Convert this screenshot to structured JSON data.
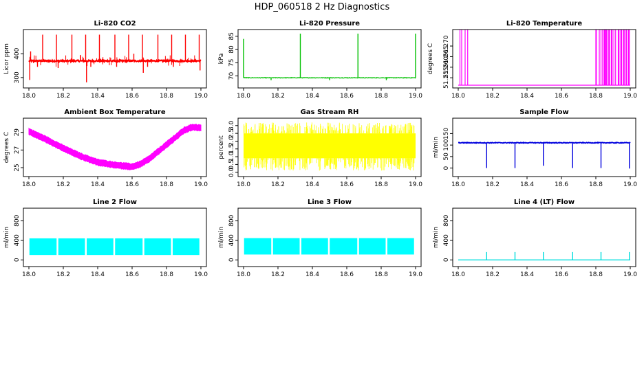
{
  "figure_title": "HDP_060518 2 Hz Diagnostics",
  "chart_data": [
    {
      "id": "co2",
      "type": "line",
      "title": "Li-820 CO2",
      "xlabel": "",
      "ylabel": "Licor ppm",
      "color": "#ff0000",
      "xlim": [
        18.0,
        19.0
      ],
      "ylim": [
        268,
        490
      ],
      "x_ticks": [
        "18.0",
        "18.2",
        "18.4",
        "18.6",
        "18.8",
        "19.0"
      ],
      "y_ticks": [
        {
          "value": 300,
          "label": "300"
        },
        {
          "value": 400,
          "label": "400"
        }
      ],
      "baseline": 370,
      "noise": 6,
      "spikes": [
        {
          "x": 18.005,
          "y": 290
        },
        {
          "x": 18.01,
          "y": 410
        },
        {
          "x": 18.05,
          "y": 345
        },
        {
          "x": 18.08,
          "y": 480
        },
        {
          "x": 18.16,
          "y": 480
        },
        {
          "x": 18.17,
          "y": 340
        },
        {
          "x": 18.25,
          "y": 480
        },
        {
          "x": 18.3,
          "y": 395
        },
        {
          "x": 18.33,
          "y": 480
        },
        {
          "x": 18.335,
          "y": 280
        },
        {
          "x": 18.36,
          "y": 345
        },
        {
          "x": 18.41,
          "y": 480
        },
        {
          "x": 18.5,
          "y": 480
        },
        {
          "x": 18.51,
          "y": 345
        },
        {
          "x": 18.58,
          "y": 480
        },
        {
          "x": 18.61,
          "y": 400
        },
        {
          "x": 18.66,
          "y": 480
        },
        {
          "x": 18.665,
          "y": 320
        },
        {
          "x": 18.69,
          "y": 345
        },
        {
          "x": 18.75,
          "y": 480
        },
        {
          "x": 18.83,
          "y": 480
        },
        {
          "x": 18.84,
          "y": 345
        },
        {
          "x": 18.91,
          "y": 480
        },
        {
          "x": 18.99,
          "y": 480
        },
        {
          "x": 18.995,
          "y": 330
        }
      ]
    },
    {
      "id": "pressure",
      "type": "line",
      "title": "Li-820 Pressure",
      "xlabel": "",
      "ylabel": "kPa",
      "color": "#00c000",
      "xlim": [
        18.0,
        19.0
      ],
      "ylim": [
        66.5,
        86.5
      ],
      "x_ticks": [
        "18.0",
        "18.2",
        "18.4",
        "18.6",
        "18.8",
        "19.0"
      ],
      "y_ticks": [
        {
          "value": 70,
          "label": "70"
        },
        {
          "value": 75,
          "label": "75"
        },
        {
          "value": 80,
          "label": "80"
        },
        {
          "value": 85,
          "label": "85"
        }
      ],
      "baseline": 69.3,
      "noise": 0.2,
      "spikes": [
        {
          "x": 18.0,
          "y": 84
        },
        {
          "x": 18.33,
          "y": 86
        },
        {
          "x": 18.665,
          "y": 86
        },
        {
          "x": 19.0,
          "y": 86
        },
        {
          "x": 18.16,
          "y": 68.4
        },
        {
          "x": 18.5,
          "y": 68.4
        },
        {
          "x": 18.83,
          "y": 68.4
        }
      ]
    },
    {
      "id": "licor_temp",
      "type": "line",
      "title": "Li-820 Temperature",
      "xlabel": "",
      "ylabel": "degrees C",
      "color": "#ff00ff",
      "xlim": [
        18.0,
        19.0
      ],
      "ylim": [
        51.2515,
        51.2765
      ],
      "x_ticks": [
        "18.0",
        "18.2",
        "18.4",
        "18.6",
        "18.8",
        "19.0"
      ],
      "y_ticks": [
        {
          "value": 51.255,
          "label": "51.255"
        },
        {
          "value": 51.26,
          "label": "51.260"
        },
        {
          "value": 51.265,
          "label": "51.265"
        },
        {
          "value": 51.27,
          "label": "51.270"
        }
      ],
      "baseline": 51.2515,
      "high": 51.2765,
      "square_pulses": [
        [
          18.01,
          18.02
        ],
        [
          18.04,
          18.055
        ],
        [
          18.8,
          18.803
        ],
        [
          18.82,
          18.83
        ],
        [
          18.84,
          18.842
        ],
        [
          18.85,
          18.855
        ],
        [
          18.86,
          18.865
        ],
        [
          18.875,
          18.88
        ],
        [
          18.89,
          18.895
        ],
        [
          18.905,
          18.915
        ],
        [
          18.93,
          18.935
        ],
        [
          18.945,
          18.95
        ],
        [
          18.96,
          18.965
        ],
        [
          18.975,
          18.98
        ],
        [
          18.99,
          18.995
        ]
      ]
    },
    {
      "id": "box_temp",
      "type": "area",
      "title": "Ambient Box Temperature",
      "xlabel": "",
      "ylabel": "degrees C",
      "color": "#ff00ff",
      "xlim": [
        18.0,
        19.0
      ],
      "ylim": [
        24.3,
        30.3
      ],
      "x_ticks": [
        "18.0",
        "18.2",
        "18.4",
        "18.6",
        "18.8",
        "19.0"
      ],
      "y_ticks": [
        {
          "value": 25,
          "label": "25"
        },
        {
          "value": 27,
          "label": "27"
        },
        {
          "value": 29,
          "label": "29"
        }
      ],
      "curve": [
        {
          "x": 18.0,
          "y": 29.1
        },
        {
          "x": 18.1,
          "y": 28.2
        },
        {
          "x": 18.2,
          "y": 27.2
        },
        {
          "x": 18.3,
          "y": 26.3
        },
        {
          "x": 18.4,
          "y": 25.6
        },
        {
          "x": 18.5,
          "y": 25.3
        },
        {
          "x": 18.6,
          "y": 25.1
        },
        {
          "x": 18.65,
          "y": 25.4
        },
        {
          "x": 18.7,
          "y": 26.0
        },
        {
          "x": 18.8,
          "y": 27.6
        },
        {
          "x": 18.9,
          "y": 29.2
        },
        {
          "x": 18.95,
          "y": 29.6
        },
        {
          "x": 19.0,
          "y": 29.5
        }
      ],
      "band": 0.55
    },
    {
      "id": "rh",
      "type": "area",
      "title": "Gas Stream RH",
      "xlabel": "",
      "ylabel": "percent",
      "color": "#ffff00",
      "xlim": [
        18.0,
        19.0
      ],
      "ylim": [
        -0.1,
        3.3
      ],
      "x_ticks": [
        "18.0",
        "18.2",
        "18.4",
        "18.6",
        "18.8",
        "19.0"
      ],
      "y_ticks": [
        {
          "value": 0,
          "label": "0.0"
        },
        {
          "value": 0.5,
          "label": "0.5"
        },
        {
          "value": 1,
          "label": "1.0"
        },
        {
          "value": 1.5,
          "label": "1.5"
        },
        {
          "value": 2,
          "label": "2.0"
        },
        {
          "value": 2.5,
          "label": "2.5"
        },
        {
          "value": 3,
          "label": "3.0"
        }
      ],
      "core_low": 0.9,
      "core_high": 2.5,
      "min": 0.1,
      "max": 3.2
    },
    {
      "id": "sample_flow",
      "type": "line",
      "title": "Sample Flow",
      "xlabel": "",
      "ylabel": "ml/min",
      "color": "#0000dd",
      "xlim": [
        18.0,
        19.0
      ],
      "ylim": [
        -25,
        205
      ],
      "x_ticks": [
        "18.0",
        "18.2",
        "18.4",
        "18.6",
        "18.8",
        "19.0"
      ],
      "y_ticks": [
        {
          "value": 0,
          "label": "0"
        },
        {
          "value": 50,
          "label": "50"
        },
        {
          "value": 100,
          "label": "100"
        },
        {
          "value": 150,
          "label": "150"
        }
      ],
      "baseline": 110,
      "noise": 3,
      "dips": [
        {
          "x": 18.165,
          "y": 0
        },
        {
          "x": 18.33,
          "y": 0
        },
        {
          "x": 18.495,
          "y": 10
        },
        {
          "x": 18.665,
          "y": 0
        },
        {
          "x": 18.83,
          "y": 0
        },
        {
          "x": 18.995,
          "y": -2
        }
      ]
    },
    {
      "id": "line2",
      "type": "area",
      "title": "Line 2 Flow",
      "xlabel": "",
      "ylabel": "ml/min",
      "color": "#00ffff",
      "xlim": [
        18.0,
        19.0
      ],
      "ylim": [
        -80,
        1000
      ],
      "x_ticks": [
        "18.0",
        "18.2",
        "18.4",
        "18.6",
        "18.8",
        "19.0"
      ],
      "y_ticks": [
        {
          "value": 0,
          "label": "0"
        },
        {
          "value": 400,
          "label": "400"
        },
        {
          "value": 800,
          "label": "800"
        }
      ],
      "band_low": 100,
      "band_high": 440,
      "gaps": [
        18.165,
        18.33,
        18.495,
        18.665,
        18.83,
        18.995
      ]
    },
    {
      "id": "line3",
      "type": "area",
      "title": "Line 3 Flow",
      "xlabel": "",
      "ylabel": "ml/min",
      "color": "#00ffff",
      "xlim": [
        18.0,
        19.0
      ],
      "ylim": [
        -80,
        1000
      ],
      "x_ticks": [
        "18.0",
        "18.2",
        "18.4",
        "18.6",
        "18.8",
        "19.0"
      ],
      "y_ticks": [
        {
          "value": 0,
          "label": "0"
        },
        {
          "value": 400,
          "label": "400"
        },
        {
          "value": 800,
          "label": "800"
        }
      ],
      "band_low": 110,
      "band_high": 445,
      "gaps": [
        18.165,
        18.33,
        18.495,
        18.665,
        18.83,
        18.995
      ]
    },
    {
      "id": "line4",
      "type": "line",
      "title": "Line 4 (LT) Flow",
      "xlabel": "",
      "ylabel": "ml/min",
      "color": "#00dddd",
      "xlim": [
        18.0,
        19.0
      ],
      "ylim": [
        -80,
        1000
      ],
      "x_ticks": [
        "18.0",
        "18.2",
        "18.4",
        "18.6",
        "18.8",
        "19.0"
      ],
      "y_ticks": [
        {
          "value": 0,
          "label": "0"
        },
        {
          "value": 400,
          "label": "400"
        },
        {
          "value": 800,
          "label": "800"
        }
      ],
      "baseline": 0,
      "spikes": [
        {
          "x": 18.165,
          "y": 160
        },
        {
          "x": 18.33,
          "y": 160
        },
        {
          "x": 18.495,
          "y": 160
        },
        {
          "x": 18.665,
          "y": 160
        },
        {
          "x": 18.83,
          "y": 160
        },
        {
          "x": 18.995,
          "y": 160
        }
      ]
    }
  ]
}
